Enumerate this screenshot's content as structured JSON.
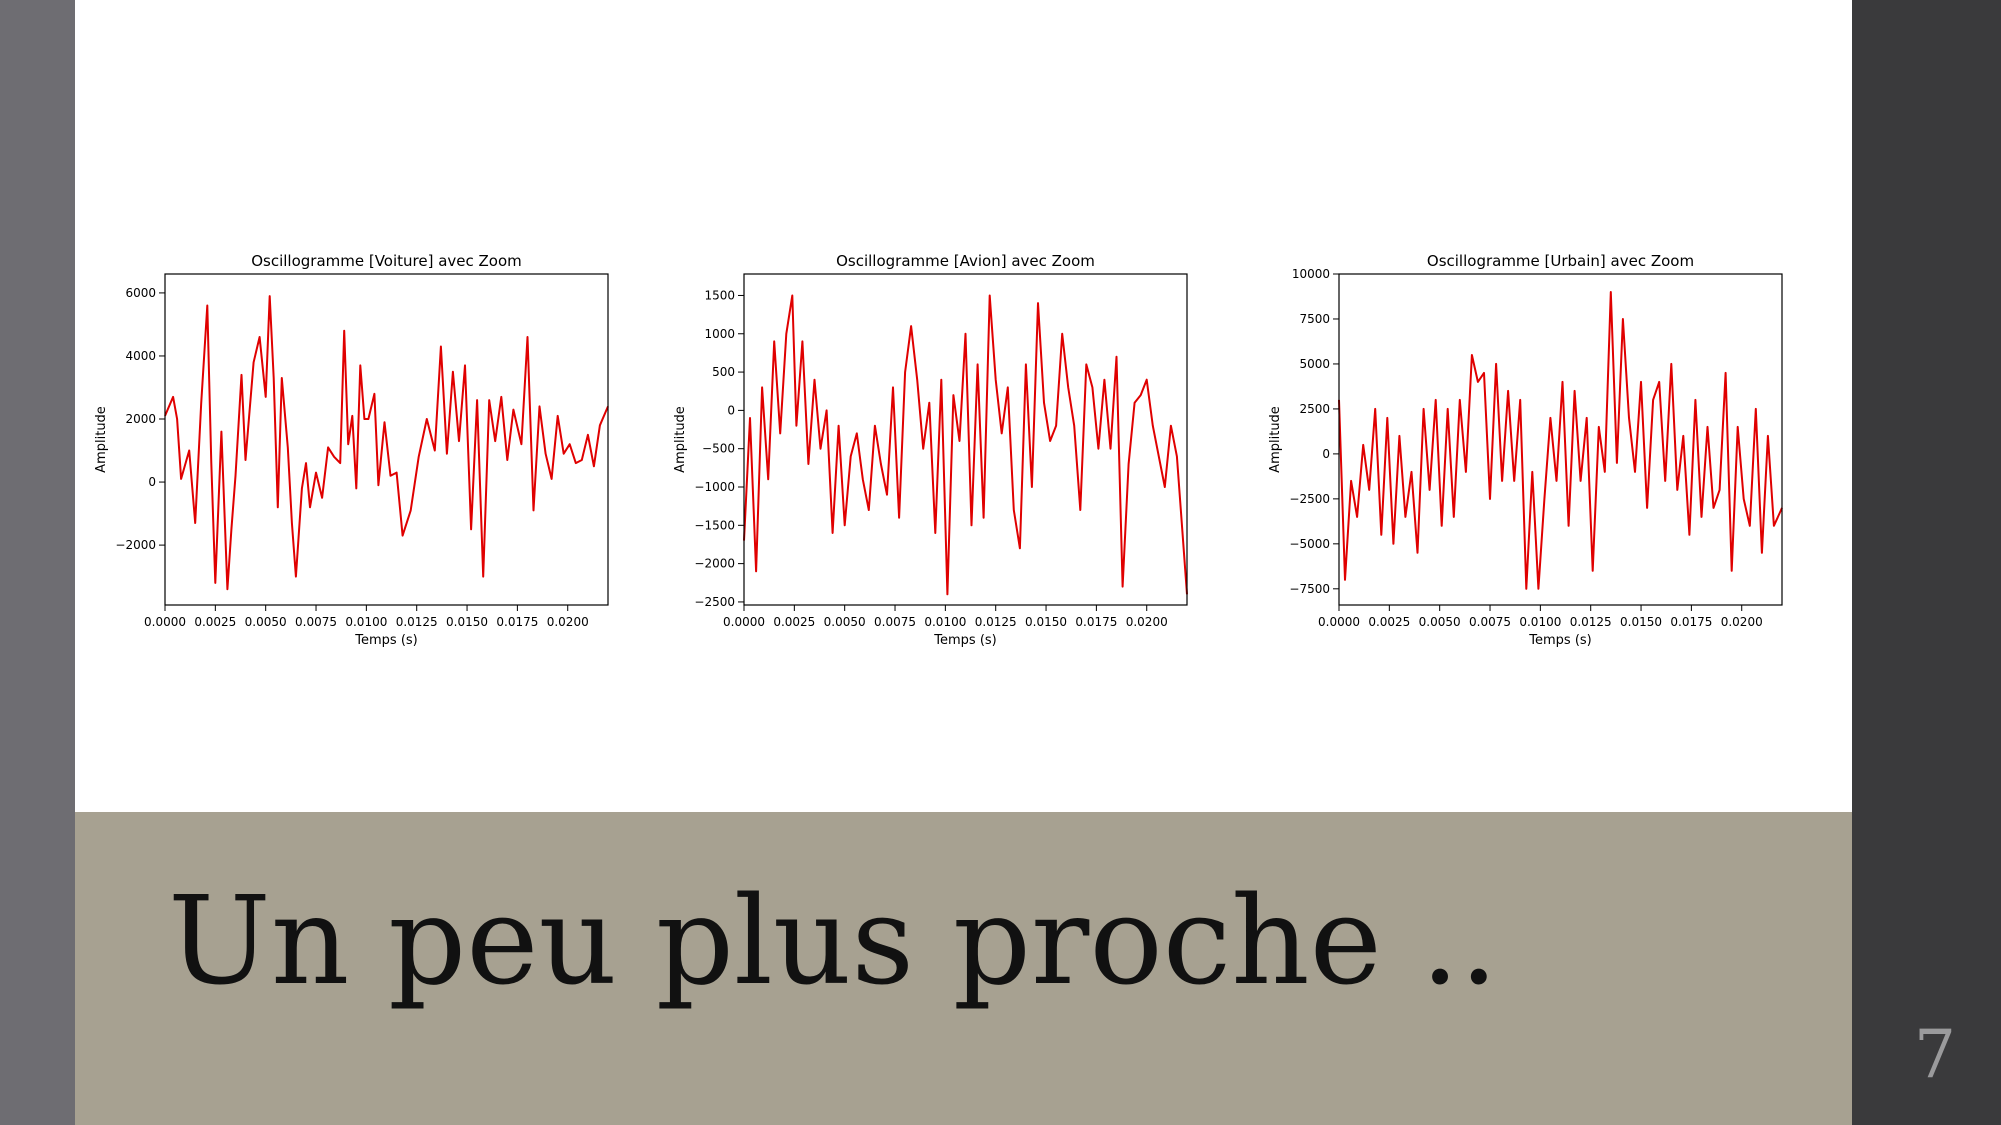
{
  "slide": {
    "title": "Un peu plus proche ..",
    "page_number": "7",
    "colors": {
      "slide_bg": "#ffffff",
      "title_band": "#a7a191",
      "sidebar": "#3a3a3c",
      "left_strip": "#6e6d72",
      "line": "#e00000"
    }
  },
  "chart_data": [
    {
      "type": "line",
      "title": "Oscillogramme [Voiture] avec Zoom",
      "xlabel": "Temps (s)",
      "ylabel": "Amplitude",
      "xlim": [
        0,
        0.022
      ],
      "ylim": [
        -3900,
        6600
      ],
      "xticks": [
        "0.0000",
        "0.0025",
        "0.0050",
        "0.0075",
        "0.0100",
        "0.0125",
        "0.0150",
        "0.0175",
        "0.0200"
      ],
      "yticks": [
        -2000,
        0,
        2000,
        4000,
        6000
      ],
      "ytick_labels": [
        "−2000",
        "0",
        "2000",
        "4000",
        "6000"
      ],
      "series": [
        {
          "color": "#e00000",
          "x": [
            0,
            0.0004,
            0.0006,
            0.0008,
            0.0012,
            0.0015,
            0.0018,
            0.0021,
            0.0023,
            0.0025,
            0.0028,
            0.0031,
            0.0033,
            0.0035,
            0.0038,
            0.004,
            0.0044,
            0.0047,
            0.005,
            0.0052,
            0.0054,
            0.0056,
            0.0058,
            0.0061,
            0.0063,
            0.0065,
            0.0068,
            0.007,
            0.0072,
            0.0075,
            0.0078,
            0.0081,
            0.0084,
            0.0087,
            0.0089,
            0.0091,
            0.0093,
            0.0095,
            0.0097,
            0.0099,
            0.0101,
            0.0104,
            0.0106,
            0.0109,
            0.0112,
            0.0115,
            0.0118,
            0.0122,
            0.0126,
            0.013,
            0.0134,
            0.0137,
            0.014,
            0.0143,
            0.0146,
            0.0149,
            0.0152,
            0.0155,
            0.0158,
            0.0161,
            0.0164,
            0.0167,
            0.017,
            0.0173,
            0.0177,
            0.018,
            0.0183,
            0.0186,
            0.0189,
            0.0192,
            0.0195,
            0.0198,
            0.0201,
            0.0204,
            0.0207,
            0.021,
            0.0213,
            0.0216,
            0.022
          ],
          "y": [
            2100,
            2700,
            2000,
            100,
            1000,
            -1300,
            2500,
            5600,
            600,
            -3200,
            1600,
            -3400,
            -1500,
            200,
            3400,
            700,
            3800,
            4600,
            2700,
            5900,
            3300,
            -800,
            3300,
            1100,
            -1300,
            -3000,
            -200,
            600,
            -800,
            300,
            -500,
            1100,
            800,
            600,
            4800,
            1200,
            2100,
            -200,
            3700,
            2000,
            2000,
            2800,
            -100,
            1900,
            200,
            300,
            -1700,
            -900,
            800,
            2000,
            1000,
            4300,
            900,
            3500,
            1300,
            3700,
            -1500,
            2600,
            -3000,
            2600,
            1300,
            2700,
            700,
            2300,
            1200,
            4600,
            -900,
            2400,
            900,
            100,
            2100,
            900,
            1200,
            600,
            700,
            1500,
            500,
            1800,
            2400
          ]
        }
      ]
    },
    {
      "type": "line",
      "title": "Oscillogramme [Avion] avec Zoom",
      "xlabel": "Temps (s)",
      "ylabel": "Amplitude",
      "xlim": [
        0,
        0.022
      ],
      "ylim": [
        -2540,
        1780
      ],
      "xticks": [
        "0.0000",
        "0.0025",
        "0.0050",
        "0.0075",
        "0.0100",
        "0.0125",
        "0.0150",
        "0.0175",
        "0.0200"
      ],
      "yticks": [
        -2500,
        -2000,
        -1500,
        -1000,
        -500,
        0,
        500,
        1000,
        1500
      ],
      "ytick_labels": [
        "−2500",
        "−2000",
        "−1500",
        "−1000",
        "−500",
        "0",
        "500",
        "1000",
        "1500"
      ],
      "series": [
        {
          "color": "#e00000",
          "x": [
            0,
            0.0003,
            0.0006,
            0.0009,
            0.0012,
            0.0015,
            0.0018,
            0.0021,
            0.0024,
            0.0026,
            0.0029,
            0.0032,
            0.0035,
            0.0038,
            0.0041,
            0.0044,
            0.0047,
            0.005,
            0.0053,
            0.0056,
            0.0059,
            0.0062,
            0.0065,
            0.0068,
            0.0071,
            0.0074,
            0.0077,
            0.008,
            0.0083,
            0.0086,
            0.0089,
            0.0092,
            0.0095,
            0.0098,
            0.0101,
            0.0104,
            0.0107,
            0.011,
            0.0113,
            0.0116,
            0.0119,
            0.0122,
            0.0125,
            0.0128,
            0.0131,
            0.0134,
            0.0137,
            0.014,
            0.0143,
            0.0146,
            0.0149,
            0.0152,
            0.0155,
            0.0158,
            0.0161,
            0.0164,
            0.0167,
            0.017,
            0.0173,
            0.0176,
            0.0179,
            0.0182,
            0.0185,
            0.0188,
            0.0191,
            0.0194,
            0.0197,
            0.02,
            0.0203,
            0.0206,
            0.0209,
            0.0212,
            0.0215,
            0.022
          ],
          "y": [
            -1700,
            -100,
            -2100,
            300,
            -900,
            900,
            -300,
            1000,
            1500,
            -200,
            900,
            -700,
            400,
            -500,
            0,
            -1600,
            -200,
            -1500,
            -600,
            -300,
            -900,
            -1300,
            -200,
            -700,
            -1100,
            300,
            -1400,
            500,
            1100,
            400,
            -500,
            100,
            -1600,
            400,
            -2400,
            200,
            -400,
            1000,
            -1500,
            600,
            -1400,
            1500,
            400,
            -300,
            300,
            -1300,
            -1800,
            600,
            -1000,
            1400,
            100,
            -400,
            -200,
            1000,
            300,
            -200,
            -1300,
            600,
            300,
            -500,
            400,
            -500,
            700,
            -2300,
            -700,
            100,
            200,
            400,
            -200,
            -600,
            -1000,
            -200,
            -600,
            -2400
          ]
        }
      ]
    },
    {
      "type": "line",
      "title": "Oscillogramme [Urbain] avec Zoom",
      "xlabel": "Temps (s)",
      "ylabel": "Amplitude",
      "xlim": [
        0,
        0.022
      ],
      "ylim": [
        -8400,
        10000
      ],
      "xticks": [
        "0.0000",
        "0.0025",
        "0.0050",
        "0.0075",
        "0.0100",
        "0.0125",
        "0.0150",
        "0.0175",
        "0.0200"
      ],
      "yticks": [
        -7500,
        -5000,
        -2500,
        0,
        2500,
        5000,
        7500,
        10000
      ],
      "ytick_labels": [
        "−7500",
        "−5000",
        "−2500",
        "0",
        "2500",
        "5000",
        "7500",
        "10000"
      ],
      "series": [
        {
          "color": "#e00000",
          "x": [
            0,
            0.0003,
            0.0006,
            0.0009,
            0.0012,
            0.0015,
            0.0018,
            0.0021,
            0.0024,
            0.0027,
            0.003,
            0.0033,
            0.0036,
            0.0039,
            0.0042,
            0.0045,
            0.0048,
            0.0051,
            0.0054,
            0.0057,
            0.006,
            0.0063,
            0.0066,
            0.0069,
            0.0072,
            0.0075,
            0.0078,
            0.0081,
            0.0084,
            0.0087,
            0.009,
            0.0093,
            0.0096,
            0.0099,
            0.0102,
            0.0105,
            0.0108,
            0.0111,
            0.0114,
            0.0117,
            0.012,
            0.0123,
            0.0126,
            0.0129,
            0.0132,
            0.0135,
            0.0138,
            0.0141,
            0.0144,
            0.0147,
            0.015,
            0.0153,
            0.0156,
            0.0159,
            0.0162,
            0.0165,
            0.0168,
            0.0171,
            0.0174,
            0.0177,
            0.018,
            0.0183,
            0.0186,
            0.0189,
            0.0192,
            0.0195,
            0.0198,
            0.0201,
            0.0204,
            0.0207,
            0.021,
            0.0213,
            0.0216,
            0.022
          ],
          "y": [
            3000,
            -7000,
            -1500,
            -3500,
            500,
            -2000,
            2500,
            -4500,
            2000,
            -5000,
            1000,
            -3500,
            -1000,
            -5500,
            2500,
            -2000,
            3000,
            -4000,
            2500,
            -3500,
            3000,
            -1000,
            5500,
            4000,
            4500,
            -2500,
            5000,
            -1500,
            3500,
            -1500,
            3000,
            -7500,
            -1000,
            -7500,
            -2500,
            2000,
            -1500,
            4000,
            -4000,
            3500,
            -1500,
            2000,
            -6500,
            1500,
            -1000,
            9000,
            -500,
            7500,
            2000,
            -1000,
            4000,
            -3000,
            3000,
            4000,
            -1500,
            5000,
            -2000,
            1000,
            -4500,
            3000,
            -3500,
            1500,
            -3000,
            -2000,
            4500,
            -6500,
            1500,
            -2500,
            -4000,
            2500,
            -5500,
            1000,
            -4000,
            -3000
          ]
        }
      ]
    }
  ]
}
